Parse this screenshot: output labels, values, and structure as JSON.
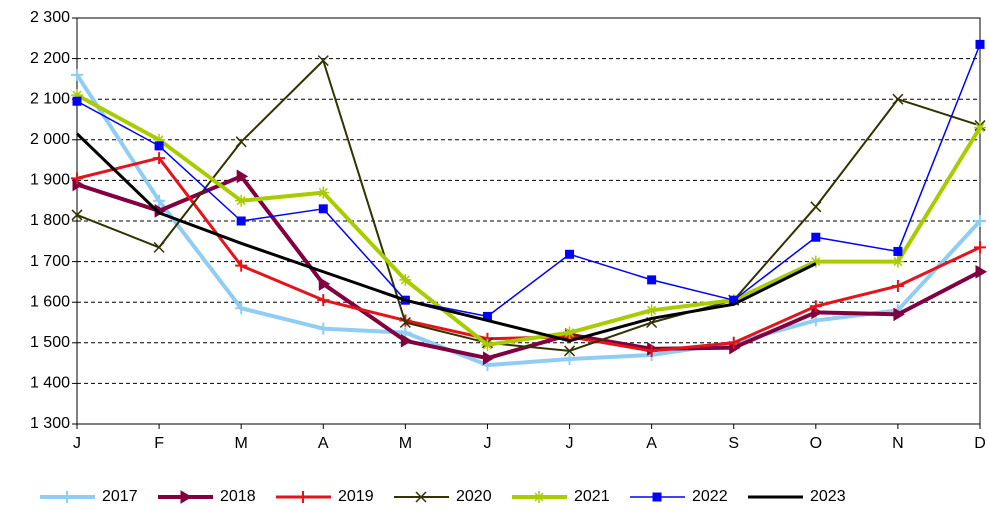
{
  "chart_data": {
    "type": "line",
    "categories": [
      "J",
      "F",
      "M",
      "A",
      "M",
      "J",
      "J",
      "A",
      "S",
      "O",
      "N",
      "D"
    ],
    "series": [
      {
        "name": "2017",
        "color": "#8fcdf4",
        "marker": "plus",
        "values": [
          2160,
          1850,
          1585,
          1535,
          1525,
          1445,
          1460,
          1470,
          1500,
          1555,
          1580,
          1800
        ]
      },
      {
        "name": "2018",
        "color": "#800040",
        "marker": "triangle",
        "values": [
          1890,
          1825,
          1910,
          1645,
          1505,
          1462,
          1520,
          1485,
          1488,
          1575,
          1570,
          1675
        ]
      },
      {
        "name": "2019",
        "color": "#e3141c",
        "marker": "plus",
        "values": [
          1905,
          1955,
          1690,
          1605,
          1555,
          1510,
          1515,
          1480,
          1500,
          1590,
          1640,
          1735
        ]
      },
      {
        "name": "2020",
        "color": "#333300",
        "marker": "x",
        "values": [
          1815,
          1735,
          1995,
          2195,
          1550,
          1500,
          1480,
          1550,
          1605,
          1835,
          2100,
          2035
        ]
      },
      {
        "name": "2021",
        "color": "#a8cc00",
        "marker": "star",
        "values": [
          2110,
          2000,
          1850,
          1870,
          1655,
          1495,
          1525,
          1580,
          1605,
          1700,
          1700,
          2030
        ]
      },
      {
        "name": "2022",
        "color": "#0000ff",
        "marker": "square",
        "values": [
          2095,
          1985,
          1800,
          1830,
          1605,
          1565,
          1718,
          1655,
          1605,
          1760,
          1725,
          2235
        ]
      },
      {
        "name": "2023",
        "color": "#000000",
        "marker": "none",
        "values": [
          2015,
          1820,
          1745,
          1675,
          1605,
          1555,
          1505,
          1560,
          1595,
          1695,
          null,
          null
        ]
      }
    ],
    "ylim": [
      1300,
      2300
    ],
    "yticks": [
      {
        "value": 1300,
        "label": "1 300"
      },
      {
        "value": 1400,
        "label": "1 400"
      },
      {
        "value": 1500,
        "label": "1 500"
      },
      {
        "value": 1600,
        "label": "1 600"
      },
      {
        "value": 1700,
        "label": "1 700"
      },
      {
        "value": 1800,
        "label": "1 800"
      },
      {
        "value": 1900,
        "label": "1 900"
      },
      {
        "value": 2000,
        "label": "2 000"
      },
      {
        "value": 2100,
        "label": "2 100"
      },
      {
        "value": 2200,
        "label": "2 200"
      },
      {
        "value": 2300,
        "label": "2 300"
      }
    ],
    "grid": true,
    "legend": "bottom"
  }
}
